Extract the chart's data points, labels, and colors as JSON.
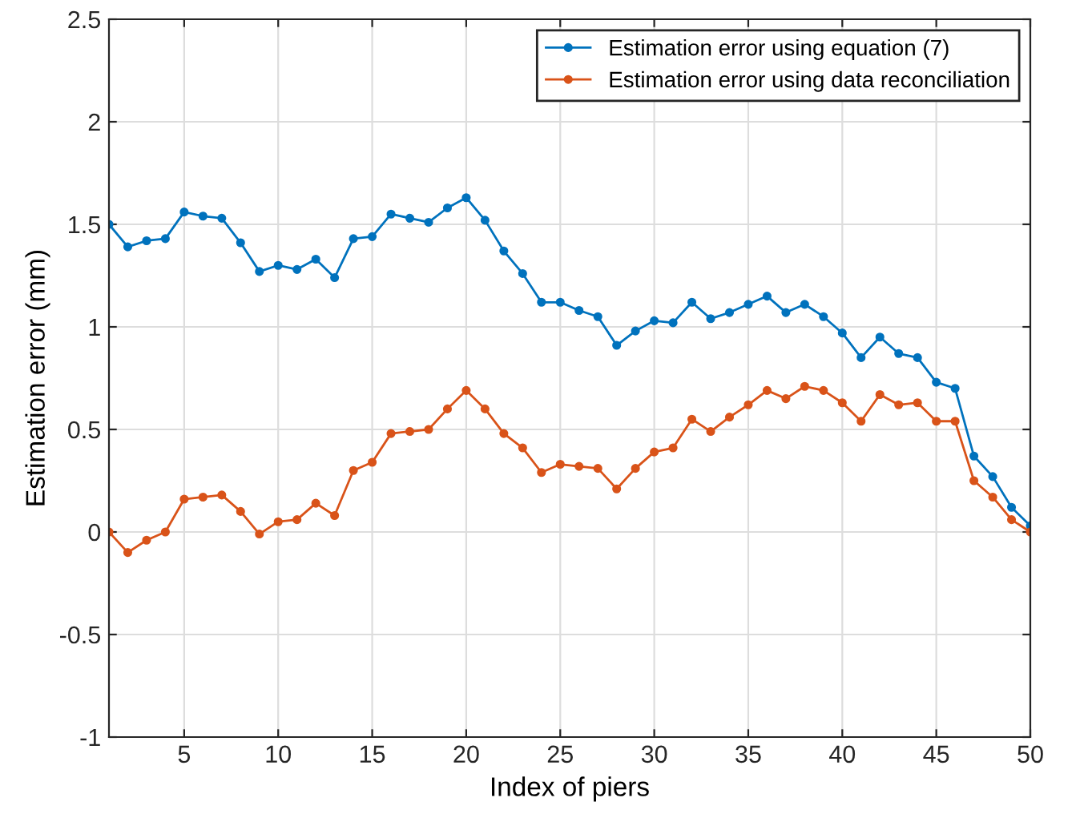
{
  "chart_data": {
    "type": "line",
    "xlabel": "Index of piers",
    "ylabel": "Estimation error (mm)",
    "x": [
      1,
      2,
      3,
      4,
      5,
      6,
      7,
      8,
      9,
      10,
      11,
      12,
      13,
      14,
      15,
      16,
      17,
      18,
      19,
      20,
      21,
      22,
      23,
      24,
      25,
      26,
      27,
      28,
      29,
      30,
      31,
      32,
      33,
      34,
      35,
      36,
      37,
      38,
      39,
      40,
      41,
      42,
      43,
      44,
      45,
      46,
      47,
      48,
      49,
      50
    ],
    "series": [
      {
        "name": "Estimation error using equation (7)",
        "color": "#0072bd",
        "values": [
          1.5,
          1.39,
          1.42,
          1.43,
          1.56,
          1.54,
          1.53,
          1.41,
          1.27,
          1.3,
          1.28,
          1.33,
          1.24,
          1.43,
          1.44,
          1.55,
          1.53,
          1.51,
          1.58,
          1.63,
          1.52,
          1.37,
          1.26,
          1.12,
          1.12,
          1.08,
          1.05,
          0.91,
          0.98,
          1.03,
          1.02,
          1.12,
          1.04,
          1.07,
          1.11,
          1.15,
          1.07,
          1.11,
          1.05,
          0.97,
          0.85,
          0.95,
          0.87,
          0.85,
          0.73,
          0.7,
          0.37,
          0.27,
          0.12,
          0.03
        ]
      },
      {
        "name": "Estimation error using data reconciliation",
        "color": "#d95319",
        "values": [
          0.0,
          -0.1,
          -0.04,
          0.0,
          0.16,
          0.17,
          0.18,
          0.1,
          -0.01,
          0.05,
          0.06,
          0.14,
          0.08,
          0.3,
          0.34,
          0.48,
          0.49,
          0.5,
          0.6,
          0.69,
          0.6,
          0.48,
          0.41,
          0.29,
          0.33,
          0.32,
          0.31,
          0.21,
          0.31,
          0.39,
          0.41,
          0.55,
          0.49,
          0.56,
          0.62,
          0.69,
          0.65,
          0.71,
          0.69,
          0.63,
          0.54,
          0.67,
          0.62,
          0.63,
          0.54,
          0.54,
          0.25,
          0.17,
          0.06,
          0.0
        ]
      }
    ],
    "xlim": [
      1,
      50
    ],
    "ylim": [
      -1,
      2.5
    ],
    "xticks": [
      5,
      10,
      15,
      20,
      25,
      30,
      35,
      40,
      45,
      50
    ],
    "yticks": [
      -1,
      -0.5,
      0,
      0.5,
      1,
      1.5,
      2,
      2.5
    ],
    "grid": true,
    "legend": "top right",
    "marker": "circle",
    "line_style": "solid"
  }
}
